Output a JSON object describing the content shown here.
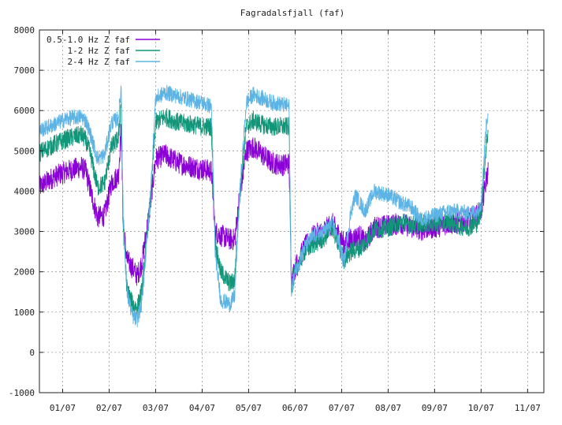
{
  "chart_data": {
    "type": "line",
    "title": "Fagradalsfjall (faf)",
    "xlabel": "",
    "ylabel": "",
    "ylim": [
      -1000,
      8000
    ],
    "xlim": [
      0,
      10.85
    ],
    "y_ticks": [
      -1000,
      0,
      1000,
      2000,
      3000,
      4000,
      5000,
      6000,
      7000,
      8000
    ],
    "x_ticks": [
      {
        "pos": 0.5,
        "label": "01/07"
      },
      {
        "pos": 1.5,
        "label": "02/07"
      },
      {
        "pos": 2.5,
        "label": "03/07"
      },
      {
        "pos": 3.5,
        "label": "04/07"
      },
      {
        "pos": 4.5,
        "label": "05/07"
      },
      {
        "pos": 5.5,
        "label": "06/07"
      },
      {
        "pos": 6.5,
        "label": "07/07"
      },
      {
        "pos": 7.5,
        "label": "08/07"
      },
      {
        "pos": 8.5,
        "label": "09/07"
      },
      {
        "pos": 9.5,
        "label": "10/07"
      },
      {
        "pos": 10.5,
        "label": "11/07"
      }
    ],
    "grid": true,
    "legend_position": "top-left",
    "series": [
      {
        "name": "0.5-1.0 Hz Z faf",
        "color": "#8b00d6",
        "noise": 280,
        "points": [
          [
            0,
            4100
          ],
          [
            0.3,
            4350
          ],
          [
            0.6,
            4500
          ],
          [
            0.9,
            4600
          ],
          [
            1.0,
            4500
          ],
          [
            1.1,
            4000
          ],
          [
            1.25,
            3350
          ],
          [
            1.4,
            3400
          ],
          [
            1.55,
            4200
          ],
          [
            1.7,
            4400
          ],
          [
            1.76,
            5600
          ],
          [
            1.8,
            3200
          ],
          [
            1.88,
            2300
          ],
          [
            2.0,
            2100
          ],
          [
            2.1,
            1900
          ],
          [
            2.2,
            2200
          ],
          [
            2.38,
            3600
          ],
          [
            2.5,
            4800
          ],
          [
            2.7,
            4900
          ],
          [
            3.0,
            4700
          ],
          [
            3.3,
            4600
          ],
          [
            3.5,
            4550
          ],
          [
            3.7,
            4500
          ],
          [
            3.78,
            3000
          ],
          [
            3.9,
            2900
          ],
          [
            4.1,
            2800
          ],
          [
            4.2,
            2800
          ],
          [
            4.3,
            3800
          ],
          [
            4.45,
            5000
          ],
          [
            4.6,
            5100
          ],
          [
            4.8,
            4900
          ],
          [
            5.0,
            4700
          ],
          [
            5.25,
            4650
          ],
          [
            5.37,
            4700
          ],
          [
            5.42,
            1800
          ],
          [
            5.5,
            2100
          ],
          [
            5.7,
            2600
          ],
          [
            5.9,
            2900
          ],
          [
            6.1,
            3000
          ],
          [
            6.3,
            3200
          ],
          [
            6.45,
            2900
          ],
          [
            6.55,
            2700
          ],
          [
            6.7,
            2800
          ],
          [
            6.9,
            2900
          ],
          [
            7.0,
            2700
          ],
          [
            7.2,
            3100
          ],
          [
            7.5,
            3150
          ],
          [
            7.8,
            3200
          ],
          [
            8.0,
            3100
          ],
          [
            8.2,
            3050
          ],
          [
            8.5,
            3100
          ],
          [
            8.8,
            3200
          ],
          [
            9.0,
            3200
          ],
          [
            9.2,
            3300
          ],
          [
            9.4,
            3400
          ],
          [
            9.5,
            3500
          ],
          [
            9.6,
            4200
          ],
          [
            9.65,
            4500
          ]
        ]
      },
      {
        "name": "1-2 Hz Z faf",
        "color": "#12967a",
        "noise": 240,
        "points": [
          [
            0,
            4950
          ],
          [
            0.3,
            5150
          ],
          [
            0.6,
            5300
          ],
          [
            0.9,
            5400
          ],
          [
            1.0,
            5250
          ],
          [
            1.1,
            4900
          ],
          [
            1.25,
            4100
          ],
          [
            1.4,
            4200
          ],
          [
            1.55,
            5100
          ],
          [
            1.7,
            5300
          ],
          [
            1.76,
            6300
          ],
          [
            1.8,
            3200
          ],
          [
            1.88,
            1600
          ],
          [
            2.0,
            1200
          ],
          [
            2.1,
            1100
          ],
          [
            2.2,
            1500
          ],
          [
            2.38,
            3700
          ],
          [
            2.5,
            5700
          ],
          [
            2.7,
            5850
          ],
          [
            3.0,
            5700
          ],
          [
            3.3,
            5650
          ],
          [
            3.5,
            5600
          ],
          [
            3.7,
            5600
          ],
          [
            3.78,
            2700
          ],
          [
            3.9,
            2000
          ],
          [
            4.1,
            1700
          ],
          [
            4.2,
            1800
          ],
          [
            4.3,
            3800
          ],
          [
            4.45,
            5600
          ],
          [
            4.6,
            5750
          ],
          [
            4.8,
            5650
          ],
          [
            5.0,
            5600
          ],
          [
            5.25,
            5600
          ],
          [
            5.37,
            5600
          ],
          [
            5.42,
            1600
          ],
          [
            5.5,
            2000
          ],
          [
            5.7,
            2500
          ],
          [
            5.9,
            2700
          ],
          [
            6.1,
            2800
          ],
          [
            6.3,
            3100
          ],
          [
            6.45,
            2600
          ],
          [
            6.55,
            2300
          ],
          [
            6.7,
            2500
          ],
          [
            6.9,
            2600
          ],
          [
            7.0,
            2700
          ],
          [
            7.2,
            3050
          ],
          [
            7.5,
            3100
          ],
          [
            7.8,
            3250
          ],
          [
            8.0,
            3150
          ],
          [
            8.2,
            3200
          ],
          [
            8.5,
            3200
          ],
          [
            8.8,
            3250
          ],
          [
            9.0,
            3150
          ],
          [
            9.2,
            3100
          ],
          [
            9.4,
            3200
          ],
          [
            9.5,
            3500
          ],
          [
            9.6,
            5000
          ],
          [
            9.65,
            5500
          ]
        ]
      },
      {
        "name": "2-4 Hz Z faf",
        "color": "#5db4e4",
        "noise": 200,
        "points": [
          [
            0,
            5500
          ],
          [
            0.3,
            5650
          ],
          [
            0.6,
            5800
          ],
          [
            0.9,
            5850
          ],
          [
            1.0,
            5750
          ],
          [
            1.1,
            5400
          ],
          [
            1.25,
            4800
          ],
          [
            1.4,
            4900
          ],
          [
            1.55,
            5700
          ],
          [
            1.7,
            5800
          ],
          [
            1.76,
            6600
          ],
          [
            1.8,
            3500
          ],
          [
            1.88,
            1500
          ],
          [
            2.0,
            900
          ],
          [
            2.1,
            800
          ],
          [
            2.2,
            1200
          ],
          [
            2.38,
            3700
          ],
          [
            2.5,
            6300
          ],
          [
            2.7,
            6450
          ],
          [
            3.0,
            6350
          ],
          [
            3.3,
            6250
          ],
          [
            3.5,
            6200
          ],
          [
            3.7,
            6100
          ],
          [
            3.78,
            2500
          ],
          [
            3.9,
            1300
          ],
          [
            4.1,
            1200
          ],
          [
            4.2,
            1400
          ],
          [
            4.3,
            3800
          ],
          [
            4.45,
            6200
          ],
          [
            4.6,
            6400
          ],
          [
            4.8,
            6300
          ],
          [
            5.0,
            6200
          ],
          [
            5.25,
            6150
          ],
          [
            5.37,
            6100
          ],
          [
            5.42,
            1500
          ],
          [
            5.5,
            2000
          ],
          [
            5.7,
            2600
          ],
          [
            5.9,
            2900
          ],
          [
            6.1,
            3000
          ],
          [
            6.3,
            3200
          ],
          [
            6.45,
            2700
          ],
          [
            6.55,
            2200
          ],
          [
            6.7,
            3500
          ],
          [
            6.8,
            3900
          ],
          [
            7.0,
            3500
          ],
          [
            7.2,
            4000
          ],
          [
            7.5,
            3900
          ],
          [
            7.8,
            3700
          ],
          [
            8.0,
            3600
          ],
          [
            8.2,
            3300
          ],
          [
            8.5,
            3400
          ],
          [
            8.8,
            3500
          ],
          [
            9.0,
            3500
          ],
          [
            9.2,
            3450
          ],
          [
            9.4,
            3500
          ],
          [
            9.5,
            3700
          ],
          [
            9.6,
            5500
          ],
          [
            9.65,
            6000
          ]
        ]
      }
    ]
  }
}
